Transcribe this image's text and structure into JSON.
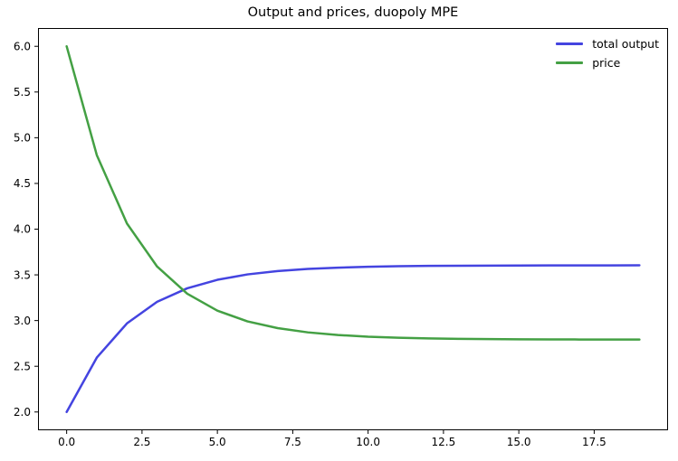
{
  "chart_data": {
    "type": "line",
    "title": "Output and prices, duopoly MPE",
    "x": [
      0,
      1,
      2,
      3,
      4,
      5,
      6,
      7,
      8,
      9,
      10,
      11,
      12,
      13,
      14,
      15,
      16,
      17,
      18,
      19
    ],
    "series": [
      {
        "name": "total output",
        "color": "#4444e0",
        "values": [
          2.0,
          2.595,
          2.969,
          3.205,
          3.353,
          3.446,
          3.505,
          3.541,
          3.565,
          3.579,
          3.588,
          3.594,
          3.598,
          3.6,
          3.601,
          3.602,
          3.603,
          3.603,
          3.603,
          3.604
        ]
      },
      {
        "name": "price",
        "color": "#44a044",
        "values": [
          6.0,
          4.81,
          4.062,
          3.591,
          3.294,
          3.108,
          2.991,
          2.917,
          2.871,
          2.842,
          2.823,
          2.812,
          2.805,
          2.8,
          2.797,
          2.795,
          2.794,
          2.793,
          2.793,
          2.793
        ]
      }
    ],
    "xlim": [
      -0.95,
      19.95
    ],
    "ylim": [
      1.8,
      6.2
    ],
    "xticks": {
      "values": [
        0,
        2.5,
        5,
        7.5,
        10,
        12.5,
        15,
        17.5
      ],
      "labels": [
        "0.0",
        "2.5",
        "5.0",
        "7.5",
        "10.0",
        "12.5",
        "15.0",
        "17.5"
      ]
    },
    "yticks": {
      "values": [
        2,
        2.5,
        3,
        3.5,
        4,
        4.5,
        5,
        5.5,
        6
      ],
      "labels": [
        "2.0",
        "2.5",
        "3.0",
        "3.5",
        "4.0",
        "4.5",
        "5.0",
        "5.5",
        "6.0"
      ]
    },
    "legend": {
      "position": "upper right",
      "frame": false
    },
    "grid": false,
    "line_width": 2.5,
    "axis_color": "#000000",
    "tick_label_color": "#000000",
    "background": "#ffffff"
  }
}
